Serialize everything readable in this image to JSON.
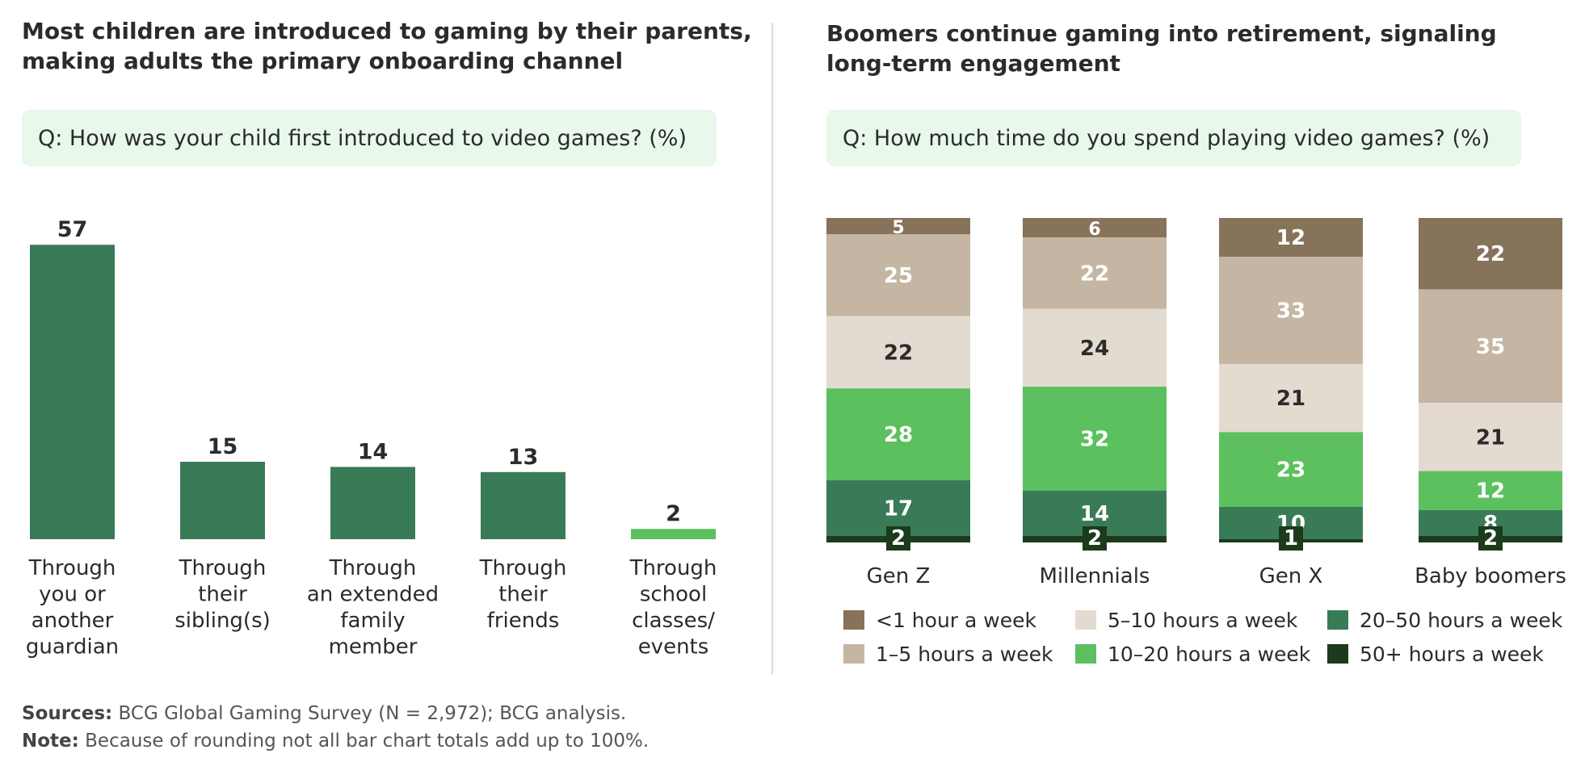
{
  "left": {
    "title_line1": "Most children are introduced to gaming by their parents,",
    "title_line2": "making adults the primary onboarding channel",
    "question": "Q: How was your child first introduced to video games? (%)"
  },
  "right": {
    "title_line1": "Boomers continue gaming into retirement, signaling",
    "title_line2": "long-term engagement",
    "question": "Q: How much time do you spend playing video games? (%)"
  },
  "footer": {
    "sources_label": "Sources:",
    "sources_text": "BCG Global Gaming Survey (N = 2,972); BCG analysis.",
    "note_label": "Note:",
    "note_text": "Because of rounding not all bar chart totals add up to 100%."
  },
  "colors": {
    "bar_dark_green": "#3a7b57",
    "bar_light_green": "#5cc05f",
    "lt1": "#87735a",
    "h1_5": "#c4b6a3",
    "h5_10": "#e3dad0",
    "h10_20": "#5cc05f",
    "h20_50": "#3a7b57",
    "h50plus": "#1b3b1c"
  },
  "chart_data": [
    {
      "type": "bar",
      "categories": [
        [
          "Through",
          "you or",
          "another",
          "guardian"
        ],
        [
          "Through",
          "their",
          "sibling(s)"
        ],
        [
          "Through",
          "an extended",
          "family",
          "member"
        ],
        [
          "Through",
          "their",
          "friends"
        ],
        [
          "Through",
          "school",
          "classes/",
          "events"
        ]
      ],
      "values": [
        57,
        15,
        14,
        13,
        2
      ],
      "bar_colors": [
        "#3a7b57",
        "#3a7b57",
        "#3a7b57",
        "#3a7b57",
        "#5cc05f"
      ]
    },
    {
      "type": "bar",
      "stacked": true,
      "categories": [
        "Gen Z",
        "Millennials",
        "Gen X",
        "Baby boomers"
      ],
      "series": [
        {
          "name": "<1 hour a week",
          "values": [
            5,
            6,
            12,
            22
          ],
          "color": "#87735a",
          "label_color": "#ffffff"
        },
        {
          "name": "1–5 hours a week",
          "values": [
            25,
            22,
            33,
            35
          ],
          "color": "#c4b6a3",
          "label_color": "#ffffff"
        },
        {
          "name": "5–10 hours a week",
          "values": [
            22,
            24,
            21,
            21
          ],
          "color": "#e3dad0",
          "label_color": "#2b2b2b"
        },
        {
          "name": "10–20 hours a week",
          "values": [
            28,
            32,
            23,
            12
          ],
          "color": "#5cc05f",
          "label_color": "#ffffff"
        },
        {
          "name": "20–50 hours a week",
          "values": [
            17,
            14,
            10,
            8
          ],
          "color": "#3a7b57",
          "label_color": "#ffffff"
        },
        {
          "name": "50+ hours a week",
          "values": [
            2,
            2,
            1,
            2
          ],
          "color": "#1b3b1c",
          "label_color": "#ffffff"
        }
      ],
      "legend_position": "bottom"
    }
  ]
}
